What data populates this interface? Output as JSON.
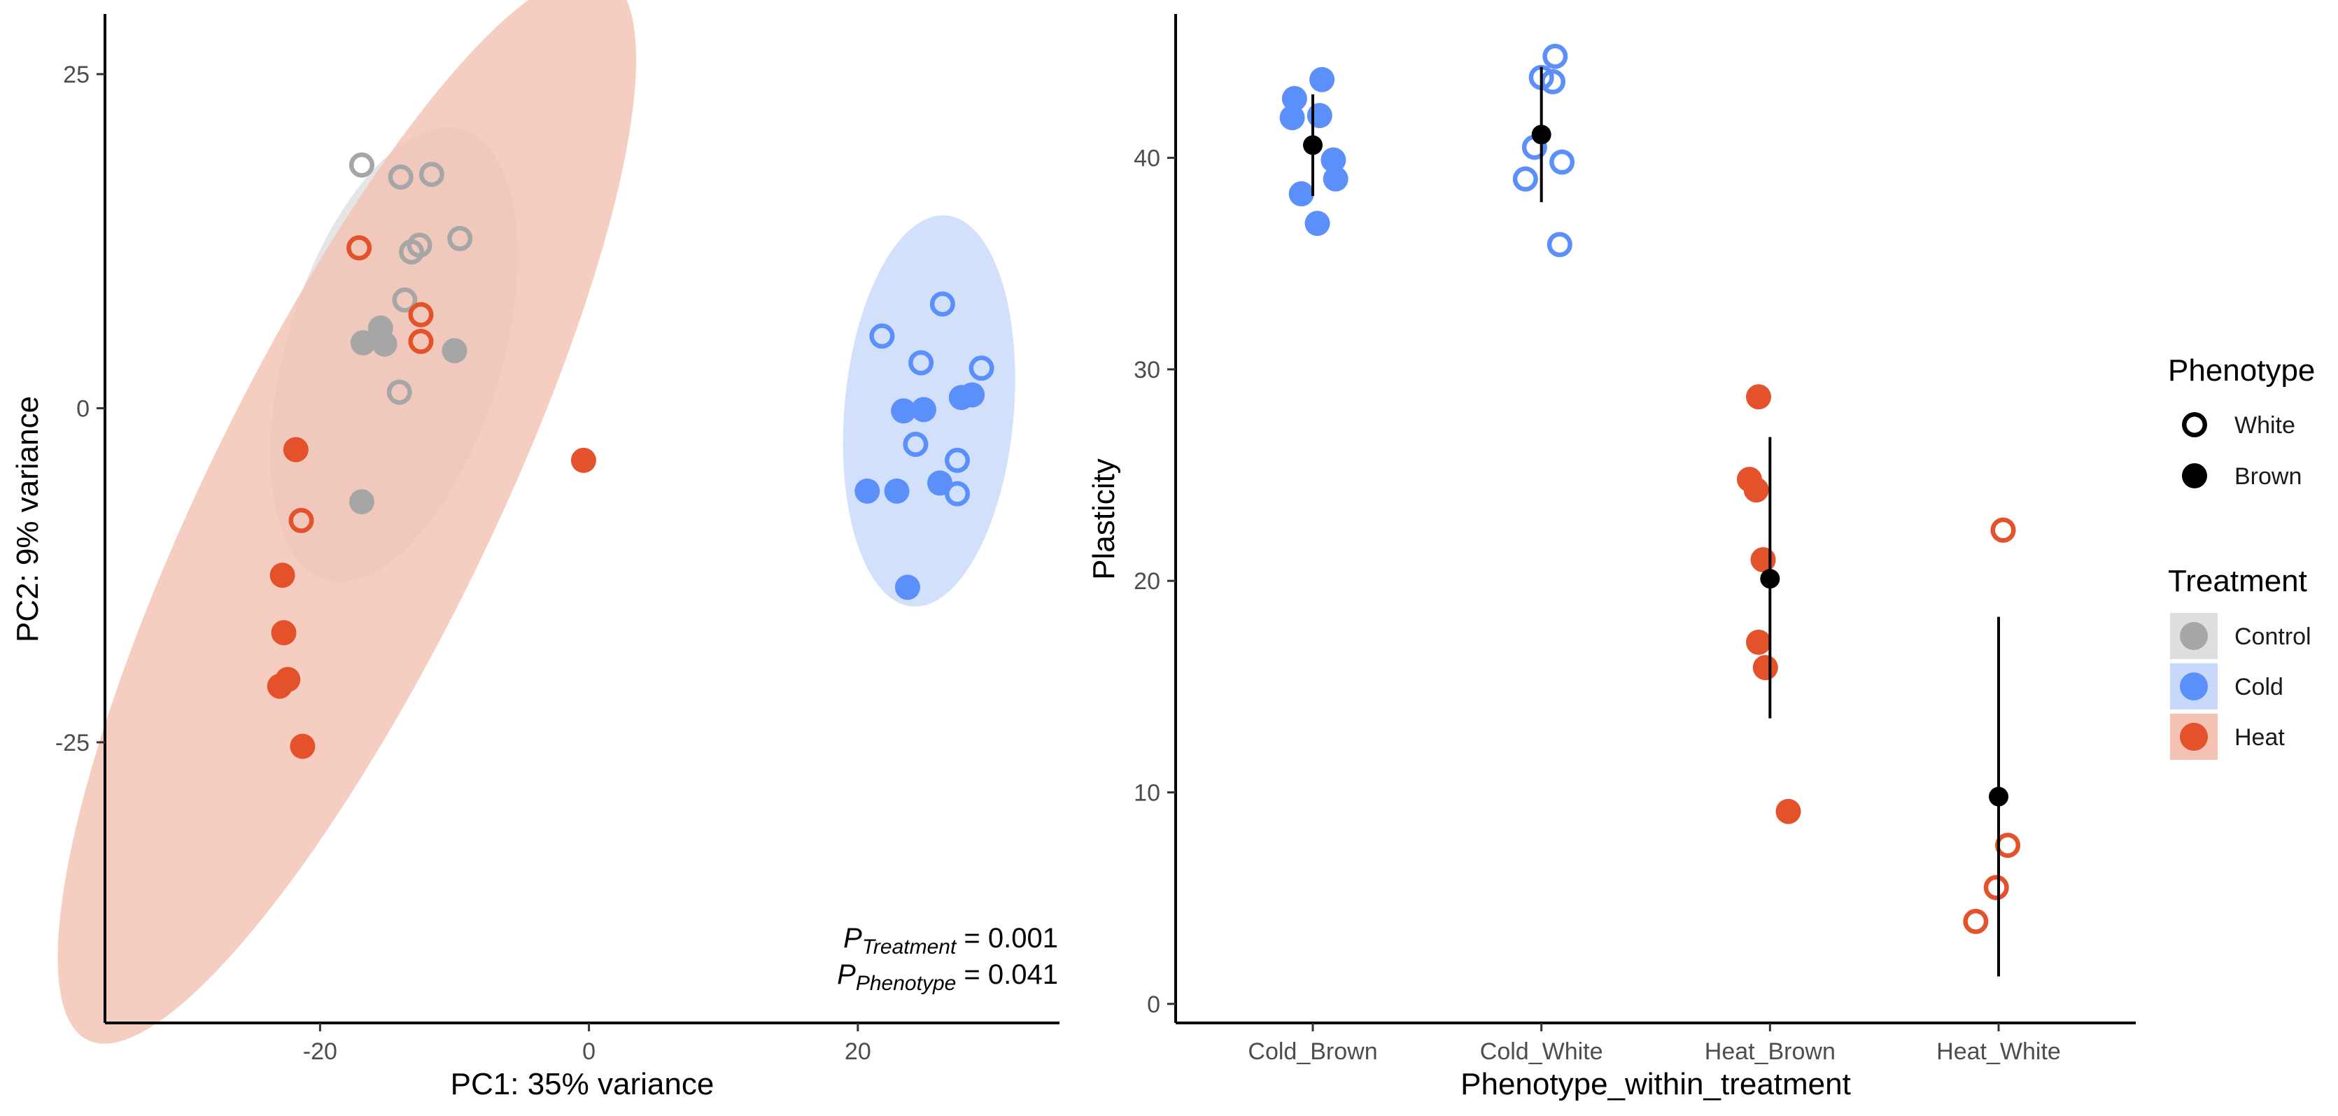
{
  "colors": {
    "control": "#a6a6a6",
    "control_ellipse": "#dedede",
    "cold": "#5b8ff9",
    "cold_ellipse": "#c7d8fb",
    "heat": "#e3522a",
    "heat_ellipse": "#f3c2b2",
    "axis": "#000000",
    "summary": "#000000"
  },
  "legends": {
    "phenotype": {
      "title": "Phenotype",
      "items": [
        {
          "label": "White",
          "style": "open"
        },
        {
          "label": "Brown",
          "style": "filled"
        }
      ]
    },
    "treatment": {
      "title": "Treatment",
      "items": [
        {
          "label": "Control",
          "color_key": "control"
        },
        {
          "label": "Cold",
          "color_key": "cold"
        },
        {
          "label": "Heat",
          "color_key": "heat"
        }
      ]
    }
  },
  "annotation": {
    "treatment_p": {
      "p": "P",
      "sub": "Treatment",
      "value": " = 0.001"
    },
    "phenotype_p": {
      "p": "P",
      "sub": "Phenotype",
      "value": " = 0.041"
    }
  },
  "chart_data": [
    {
      "type": "scatter",
      "xlabel": "PC1: 35% variance",
      "ylabel": "PC2: 9% variance",
      "xlim": [
        -36,
        35
      ],
      "ylim": [
        -46,
        29.5
      ],
      "xticks": [
        -20,
        0,
        20
      ],
      "xtick_labels": [
        "-20",
        "0",
        "20"
      ],
      "yticks": [
        -25,
        0,
        25
      ],
      "ytick_labels": [
        "-25",
        "0",
        "25"
      ],
      "grid": false,
      "ellipses": [
        {
          "treatment": "control",
          "cx": -14.5,
          "cy": 4,
          "rx": 17.5,
          "ry": 8,
          "angle": 73
        },
        {
          "treatment": "heat",
          "cx": -18,
          "cy": -7.5,
          "rx": 44,
          "ry": 10.6,
          "angle": 64
        },
        {
          "treatment": "cold",
          "cx": 25.3,
          "cy": -0.2,
          "rx": 14.6,
          "ry": 6.3,
          "angle": 85
        }
      ],
      "points": [
        {
          "treatment": "control",
          "phenotype": "White",
          "x": -16.9,
          "y": 18.2
        },
        {
          "treatment": "control",
          "phenotype": "White",
          "x": -14,
          "y": 17.3
        },
        {
          "treatment": "control",
          "phenotype": "White",
          "x": -11.7,
          "y": 17.5
        },
        {
          "treatment": "control",
          "phenotype": "White",
          "x": -9.6,
          "y": 12.7
        },
        {
          "treatment": "control",
          "phenotype": "White",
          "x": -12.6,
          "y": 12.2
        },
        {
          "treatment": "control",
          "phenotype": "White",
          "x": -13.2,
          "y": 11.7
        },
        {
          "treatment": "control",
          "phenotype": "White",
          "x": -13.7,
          "y": 8.1
        },
        {
          "treatment": "control",
          "phenotype": "White",
          "x": -14.1,
          "y": 1.2
        },
        {
          "treatment": "control",
          "phenotype": "Brown",
          "x": -15.5,
          "y": 6
        },
        {
          "treatment": "control",
          "phenotype": "Brown",
          "x": -16.8,
          "y": 4.9
        },
        {
          "treatment": "control",
          "phenotype": "Brown",
          "x": -15.2,
          "y": 4.8
        },
        {
          "treatment": "control",
          "phenotype": "Brown",
          "x": -10,
          "y": 4.3
        },
        {
          "treatment": "control",
          "phenotype": "Brown",
          "x": -16.9,
          "y": -7
        },
        {
          "treatment": "heat",
          "phenotype": "White",
          "x": -17.1,
          "y": 12
        },
        {
          "treatment": "heat",
          "phenotype": "White",
          "x": -12.5,
          "y": 7
        },
        {
          "treatment": "heat",
          "phenotype": "White",
          "x": -12.5,
          "y": 5
        },
        {
          "treatment": "heat",
          "phenotype": "White",
          "x": -21.4,
          "y": -8.4
        },
        {
          "treatment": "heat",
          "phenotype": "Brown",
          "x": -21.8,
          "y": -3.1
        },
        {
          "treatment": "heat",
          "phenotype": "Brown",
          "x": -0.4,
          "y": -3.9
        },
        {
          "treatment": "heat",
          "phenotype": "Brown",
          "x": -22.8,
          "y": -12.5
        },
        {
          "treatment": "heat",
          "phenotype": "Brown",
          "x": -22.7,
          "y": -16.8
        },
        {
          "treatment": "heat",
          "phenotype": "Brown",
          "x": -22.4,
          "y": -20.3
        },
        {
          "treatment": "heat",
          "phenotype": "Brown",
          "x": -23,
          "y": -20.8
        },
        {
          "treatment": "heat",
          "phenotype": "Brown",
          "x": -21.3,
          "y": -25.3
        },
        {
          "treatment": "cold",
          "phenotype": "White",
          "x": 26.3,
          "y": 7.8
        },
        {
          "treatment": "cold",
          "phenotype": "White",
          "x": 21.8,
          "y": 5.4
        },
        {
          "treatment": "cold",
          "phenotype": "White",
          "x": 24.7,
          "y": 3.4
        },
        {
          "treatment": "cold",
          "phenotype": "White",
          "x": 29.2,
          "y": 3
        },
        {
          "treatment": "cold",
          "phenotype": "White",
          "x": 24.3,
          "y": -2.7
        },
        {
          "treatment": "cold",
          "phenotype": "White",
          "x": 27.4,
          "y": -3.9
        },
        {
          "treatment": "cold",
          "phenotype": "White",
          "x": 27.4,
          "y": -6.4
        },
        {
          "treatment": "cold",
          "phenotype": "Brown",
          "x": 23.4,
          "y": -0.2
        },
        {
          "treatment": "cold",
          "phenotype": "Brown",
          "x": 24.9,
          "y": -0.1
        },
        {
          "treatment": "cold",
          "phenotype": "Brown",
          "x": 27.7,
          "y": 0.8
        },
        {
          "treatment": "cold",
          "phenotype": "Brown",
          "x": 28.5,
          "y": 1
        },
        {
          "treatment": "cold",
          "phenotype": "Brown",
          "x": 20.7,
          "y": -6.2
        },
        {
          "treatment": "cold",
          "phenotype": "Brown",
          "x": 22.9,
          "y": -6.2
        },
        {
          "treatment": "cold",
          "phenotype": "Brown",
          "x": 26.1,
          "y": -5.6
        },
        {
          "treatment": "cold",
          "phenotype": "Brown",
          "x": 23.7,
          "y": -13.4
        }
      ]
    },
    {
      "type": "scatter",
      "xlabel": "Phenotype_within_treatment",
      "ylabel": "Plasticity",
      "categories": [
        "Cold_Brown",
        "Cold_White",
        "Heat_Brown",
        "Heat_White"
      ],
      "ylim": [
        -0.9,
        46.8
      ],
      "yticks": [
        0,
        10,
        20,
        30,
        40
      ],
      "ytick_labels": [
        "0",
        "10",
        "20",
        "30",
        "40"
      ],
      "grid": false,
      "points": [
        {
          "category": "Cold_Brown",
          "treatment": "cold",
          "phenotype": "Brown",
          "offset": -0.08,
          "y": 42.8
        },
        {
          "category": "Cold_Brown",
          "treatment": "cold",
          "phenotype": "Brown",
          "offset": 0.04,
          "y": 43.7
        },
        {
          "category": "Cold_Brown",
          "treatment": "cold",
          "phenotype": "Brown",
          "offset": -0.09,
          "y": 41.9
        },
        {
          "category": "Cold_Brown",
          "treatment": "cold",
          "phenotype": "Brown",
          "offset": 0.03,
          "y": 42
        },
        {
          "category": "Cold_Brown",
          "treatment": "cold",
          "phenotype": "Brown",
          "offset": 0.09,
          "y": 39.9
        },
        {
          "category": "Cold_Brown",
          "treatment": "cold",
          "phenotype": "Brown",
          "offset": 0.1,
          "y": 39
        },
        {
          "category": "Cold_Brown",
          "treatment": "cold",
          "phenotype": "Brown",
          "offset": -0.05,
          "y": 38.3
        },
        {
          "category": "Cold_Brown",
          "treatment": "cold",
          "phenotype": "Brown",
          "offset": 0.02,
          "y": 36.9
        },
        {
          "category": "Cold_White",
          "treatment": "cold",
          "phenotype": "White",
          "offset": 0.06,
          "y": 44.8
        },
        {
          "category": "Cold_White",
          "treatment": "cold",
          "phenotype": "White",
          "offset": 0.0,
          "y": 43.8
        },
        {
          "category": "Cold_White",
          "treatment": "cold",
          "phenotype": "White",
          "offset": 0.05,
          "y": 43.6
        },
        {
          "category": "Cold_White",
          "treatment": "cold",
          "phenotype": "White",
          "offset": -0.03,
          "y": 40.5
        },
        {
          "category": "Cold_White",
          "treatment": "cold",
          "phenotype": "White",
          "offset": 0.09,
          "y": 39.8
        },
        {
          "category": "Cold_White",
          "treatment": "cold",
          "phenotype": "White",
          "offset": -0.07,
          "y": 39
        },
        {
          "category": "Cold_White",
          "treatment": "cold",
          "phenotype": "White",
          "offset": 0.08,
          "y": 35.9
        },
        {
          "category": "Heat_Brown",
          "treatment": "heat",
          "phenotype": "Brown",
          "offset": -0.05,
          "y": 28.7
        },
        {
          "category": "Heat_Brown",
          "treatment": "heat",
          "phenotype": "Brown",
          "offset": -0.09,
          "y": 24.8
        },
        {
          "category": "Heat_Brown",
          "treatment": "heat",
          "phenotype": "Brown",
          "offset": -0.06,
          "y": 24.3
        },
        {
          "category": "Heat_Brown",
          "treatment": "heat",
          "phenotype": "Brown",
          "offset": -0.03,
          "y": 21
        },
        {
          "category": "Heat_Brown",
          "treatment": "heat",
          "phenotype": "Brown",
          "offset": -0.05,
          "y": 17.1
        },
        {
          "category": "Heat_Brown",
          "treatment": "heat",
          "phenotype": "Brown",
          "offset": -0.02,
          "y": 15.9
        },
        {
          "category": "Heat_Brown",
          "treatment": "heat",
          "phenotype": "Brown",
          "offset": 0.08,
          "y": 9.1
        },
        {
          "category": "Heat_White",
          "treatment": "heat",
          "phenotype": "White",
          "offset": 0.02,
          "y": 22.4
        },
        {
          "category": "Heat_White",
          "treatment": "heat",
          "phenotype": "White",
          "offset": 0.04,
          "y": 7.5
        },
        {
          "category": "Heat_White",
          "treatment": "heat",
          "phenotype": "White",
          "offset": -0.01,
          "y": 5.5
        },
        {
          "category": "Heat_White",
          "treatment": "heat",
          "phenotype": "White",
          "offset": -0.1,
          "y": 3.9
        }
      ],
      "summary": [
        {
          "category": "Cold_Brown",
          "mean": 40.6,
          "low": 38.2,
          "high": 43
        },
        {
          "category": "Cold_White",
          "mean": 41.1,
          "low": 37.9,
          "high": 44.3
        },
        {
          "category": "Heat_Brown",
          "mean": 20.1,
          "low": 13.5,
          "high": 26.8
        },
        {
          "category": "Heat_White",
          "mean": 9.8,
          "low": 1.3,
          "high": 18.3
        }
      ]
    }
  ]
}
